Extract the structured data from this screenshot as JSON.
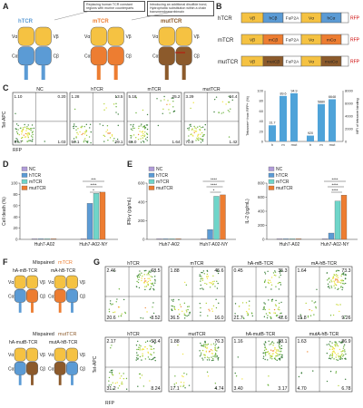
{
  "colors": {
    "blue": "#5b9bd5",
    "orange": "#ed7d31",
    "brown": "#8c5a2b",
    "yellow": "#f5c242",
    "purple": "#b19cd9",
    "teal": "#6fd5c9"
  },
  "panelA": {
    "label": "A",
    "note1": "Replacing human TCR constant regions with murine counterparts",
    "note2": "Introducing an additional disulfide bond, Hydrophobic substitution within a chain transmembrane domain",
    "titles": [
      "hTCR",
      "mTCR",
      "mutTCR"
    ],
    "chain_labels": {
      "va": "Vα",
      "vb": "Vβ",
      "ca": "Cα",
      "cb": "Cβ"
    }
  },
  "panelB": {
    "label": "B",
    "rows": [
      {
        "name": "hTCR",
        "cb": "hCβ",
        "ca": "hCα"
      },
      {
        "name": "mTCR",
        "cb": "mCβ",
        "ca": "mCα"
      },
      {
        "name": "mutTCR",
        "cb": "mutCβ",
        "ca": "mutCα"
      }
    ],
    "vb": "Vβ",
    "va": "Vα",
    "linker": "FuP2A",
    "reporter": "RFP"
  },
  "panelC": {
    "label": "C",
    "ylabel": "Tet-APC",
    "xlabel": "RFP",
    "plots": [
      {
        "title": "NC",
        "q": [
          "1.10",
          "0.20",
          "97.7",
          "1.03"
        ]
      },
      {
        "title": "hTCR",
        "q": [
          "1.28",
          "13.5",
          "56.1",
          "29.1"
        ]
      },
      {
        "title": "mTCR",
        "q": [
          "5.18",
          "25.2",
          "68.0",
          "1.64"
        ]
      },
      {
        "title": "mutTCR",
        "q": [
          "3.29",
          "24.4",
          "70.9",
          "1.42"
        ]
      }
    ]
  },
  "chart_data": [
    {
      "type": "bar",
      "categories": [
        "h",
        "m",
        "mut"
      ],
      "series": [
        {
          "name": "Tetramer+ from RFP+ (%)",
          "values": [
            31.7,
            89.6,
            94.9
          ]
        },
        {
          "name": "MFI of tetramer binding",
          "values": [
            920,
            5880,
            6648
          ]
        }
      ],
      "ylabel_left": "Tetramer+ from RFP+ (%)",
      "ylabel_right": "MFI of tetramer binding",
      "data_labels": [
        "31.7",
        "89.6",
        "94.9",
        "920",
        "5880",
        "6648"
      ],
      "yticks_left": [
        "0",
        "20",
        "40",
        "60",
        "80",
        "100"
      ],
      "yticks_right": [
        "0",
        "2000",
        "4000",
        "6000",
        "8000"
      ]
    },
    {
      "type": "bar",
      "title": "D",
      "ylabel": "Cell death (%)",
      "categories": [
        "Huh7-A02",
        "Huh7-A02-NY"
      ],
      "series": [
        {
          "name": "NC",
          "values": [
            0.5,
            0.5
          ]
        },
        {
          "name": "hTCR",
          "values": [
            0.7,
            64
          ]
        },
        {
          "name": "mTCR",
          "values": [
            0.8,
            82
          ]
        },
        {
          "name": "mutTCR",
          "values": [
            0.9,
            84
          ]
        }
      ],
      "ylim": [
        0,
        100
      ],
      "yticks": [
        "0",
        "20",
        "40",
        "60",
        "80",
        "100"
      ],
      "sig": [
        "***",
        "****",
        "*"
      ]
    },
    {
      "type": "bar",
      "title": "E",
      "ylabel": "IFN-γ (pg/mL)",
      "categories": [
        "Huh7-A02",
        "Huh7-A02-NY"
      ],
      "series": [
        {
          "name": "NC",
          "values": [
            2,
            5
          ]
        },
        {
          "name": "hTCR",
          "values": [
            3,
            105
          ]
        },
        {
          "name": "mTCR",
          "values": [
            4,
            460
          ]
        },
        {
          "name": "mutTCR",
          "values": [
            5,
            475
          ]
        }
      ],
      "ylim": [
        0,
        600
      ],
      "yticks": [
        "0",
        "200",
        "400",
        "600"
      ],
      "sig": [
        "****",
        "****",
        "*"
      ]
    },
    {
      "type": "bar",
      "title": "",
      "ylabel": "IL-2 (pg/mL)",
      "categories": [
        "Huh7-A02",
        "Huh7-A02-NY"
      ],
      "series": [
        {
          "name": "NC",
          "values": [
            1,
            2
          ]
        },
        {
          "name": "hTCR",
          "values": [
            2,
            90
          ]
        },
        {
          "name": "mTCR",
          "values": [
            3,
            545
          ]
        },
        {
          "name": "mutTCR",
          "values": [
            4,
            630
          ]
        }
      ],
      "ylim": [
        0,
        800
      ],
      "yticks": [
        "0",
        "200",
        "400",
        "600",
        "800"
      ],
      "sig": [
        "****",
        "****",
        "****"
      ]
    }
  ],
  "legend": [
    "NC",
    "hTCR",
    "mTCR",
    "mutTCR"
  ],
  "panelF": {
    "label": "F",
    "title1": "Mispaired",
    "title1b": "mTCR",
    "row1": [
      "hA-mB-TCR",
      "mA-hB-TCR"
    ],
    "title2": "Mispaired",
    "title2b": "mutTCR",
    "row2": [
      "hA-mutB-TCR",
      "mutA-hB-TCR"
    ]
  },
  "panelG": {
    "label": "G",
    "ylabel": "Tet-APC",
    "xlabel": "RFP",
    "plots": [
      {
        "title": "hTCR",
        "q": [
          "2.46",
          "68.5",
          "20.6",
          "8.52"
        ]
      },
      {
        "title": "mTCR",
        "q": [
          "1.88",
          "45.6",
          "36.5",
          "16.0"
        ]
      },
      {
        "title": "hA-mB-TCR",
        "q": [
          "0.45",
          "35.3",
          "21.7",
          "42.6"
        ]
      },
      {
        "title": "mA-hB-TCR",
        "q": [
          "1.64",
          "73.3",
          "15.8",
          "9.26"
        ]
      },
      {
        "title": "hTCR",
        "q": [
          "2.17",
          "58.4",
          "31.2",
          "8.24"
        ]
      },
      {
        "title": "mutTCR",
        "q": [
          "1.88",
          "76.3",
          "17.1",
          "4.74"
        ]
      },
      {
        "title": "hA-mutB-TCR",
        "q": [
          "1.16",
          "88.1",
          "3.40",
          "3.17"
        ]
      },
      {
        "title": "mutA-hB-TCR",
        "q": [
          "1.63",
          "86.9",
          "4.70",
          "6.78"
        ]
      }
    ]
  }
}
